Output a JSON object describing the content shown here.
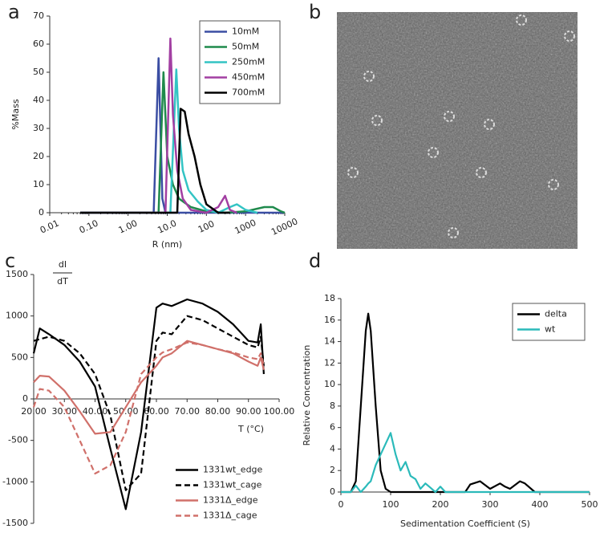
{
  "chart_data": [
    {
      "type": "line",
      "panel_label": "a",
      "xlabel": "R (nm)",
      "ylabel": "%Mass",
      "xlog": true,
      "legend": "upper right",
      "xlim": [
        0.01,
        10000
      ],
      "xticks": [
        0.01,
        {
          "value": 0.1,
          "label": "0.10"
        },
        {
          "value": 1,
          "label": "1.00"
        },
        {
          "value": 10,
          "label": "10.0"
        },
        100,
        1000,
        10000
      ],
      "ylim": [
        0,
        70
      ],
      "yticks": [
        0,
        10,
        20,
        30,
        40,
        50,
        60,
        70
      ],
      "series": [
        {
          "name": "10mM",
          "color": "#3b4ea3",
          "x": [
            0.06,
            4.5,
            6,
            7.5,
            9,
            10000
          ],
          "values": [
            0,
            0,
            55,
            5,
            0,
            0
          ]
        },
        {
          "name": "50mM",
          "color": "#1f8a4c",
          "x": [
            0.06,
            6,
            8,
            10,
            14,
            20,
            40,
            100,
            300,
            1000,
            3000,
            5000,
            8000,
            10000
          ],
          "values": [
            0,
            0,
            50,
            20,
            10,
            5,
            2,
            0.5,
            0,
            0.5,
            2,
            2,
            0.5,
            0
          ]
        },
        {
          "name": "250mM",
          "color": "#33c4c4",
          "x": [
            0.06,
            12,
            17,
            20,
            25,
            35,
            60,
            100,
            200,
            400,
            600,
            1000,
            2000
          ],
          "values": [
            0,
            0,
            51,
            30,
            15,
            8,
            4,
            1,
            0,
            2,
            3,
            1,
            0
          ]
        },
        {
          "name": "450mM",
          "color": "#a23fa2",
          "x": [
            0.06,
            9,
            12,
            14,
            18,
            25,
            40,
            100,
            200,
            300,
            400,
            600
          ],
          "values": [
            0,
            0,
            62,
            35,
            15,
            5,
            1,
            0,
            2,
            6,
            1,
            0
          ]
        },
        {
          "name": "700mM",
          "color": "#000000",
          "x": [
            0.06,
            18,
            22,
            28,
            35,
            50,
            70,
            100,
            200,
            400
          ],
          "values": [
            0,
            0,
            37,
            36,
            28,
            20,
            10,
            3,
            0,
            0
          ]
        }
      ]
    },
    {
      "type": "image",
      "panel_label": "b"
    },
    {
      "type": "line",
      "panel_label": "c",
      "xlabel": "T (°C)",
      "ylabel_top": "dI",
      "ylabel_bottom": "dT",
      "xaxis_position": "zero",
      "legend": "lower right",
      "xlim": [
        20,
        100
      ],
      "xticks": [
        {
          "value": 20,
          "label": "20.00"
        },
        {
          "value": 30,
          "label": "30.00"
        },
        {
          "value": 40,
          "label": "40.00"
        },
        {
          "value": 50,
          "label": "50.00"
        },
        {
          "value": 60,
          "label": "60.00"
        },
        {
          "value": 70,
          "label": "70.00"
        },
        {
          "value": 80,
          "label": "80.00"
        },
        {
          "value": 90,
          "label": "90.00"
        },
        {
          "value": 100,
          "label": "100.00"
        }
      ],
      "ylim": [
        -1500,
        1500
      ],
      "yticks": [
        -1500,
        -1000,
        -500,
        0,
        500,
        1000,
        1500
      ],
      "x": [
        20,
        22,
        25,
        30,
        35,
        40,
        45,
        50,
        55,
        60,
        62,
        65,
        70,
        75,
        80,
        85,
        90,
        93,
        94,
        95
      ],
      "series": [
        {
          "name": "1331wt_edge",
          "color": "#000000",
          "dash": false,
          "values": [
            550,
            850,
            780,
            650,
            450,
            150,
            -600,
            -1330,
            -400,
            1100,
            1150,
            1120,
            1200,
            1150,
            1050,
            900,
            700,
            680,
            900,
            300
          ]
        },
        {
          "name": "1331wt_cage",
          "color": "#000000",
          "dash": true,
          "values": [
            700,
            720,
            750,
            700,
            550,
            300,
            -200,
            -1100,
            -900,
            700,
            800,
            780,
            1000,
            950,
            850,
            750,
            650,
            620,
            750,
            400
          ]
        },
        {
          "name": "1331Δ_edge",
          "color": "#d0706a",
          "dash": false,
          "values": [
            200,
            280,
            270,
            100,
            -150,
            -420,
            -400,
            -100,
            200,
            400,
            500,
            550,
            700,
            650,
            600,
            550,
            450,
            400,
            500,
            350
          ]
        },
        {
          "name": "1331Δ_cage",
          "color": "#d0706a",
          "dash": true,
          "values": [
            -100,
            120,
            100,
            -100,
            -500,
            -900,
            -800,
            -400,
            300,
            500,
            560,
            600,
            680,
            650,
            600,
            560,
            500,
            480,
            550,
            400
          ]
        }
      ]
    },
    {
      "type": "line",
      "panel_label": "d",
      "xlabel": "Sedimentation Coefficient (S)",
      "ylabel": "Relative Concentration",
      "legend": "upper right",
      "xlim": [
        0,
        500
      ],
      "xticks": [
        0,
        100,
        200,
        300,
        400,
        500
      ],
      "ylim": [
        0,
        18
      ],
      "yticks": [
        0,
        2,
        4,
        6,
        8,
        10,
        12,
        14,
        16,
        18
      ],
      "x": [
        0,
        20,
        30,
        40,
        50,
        55,
        60,
        70,
        80,
        90,
        100,
        110,
        120,
        130,
        140,
        150,
        160,
        170,
        180,
        190,
        200,
        210,
        250,
        260,
        280,
        300,
        320,
        330,
        340,
        360,
        370,
        390,
        500
      ],
      "series": [
        {
          "name": "delta",
          "color": "#000000",
          "values": [
            0,
            0,
            1,
            8,
            15,
            16.6,
            15,
            8,
            2,
            0.3,
            0,
            0,
            0,
            0,
            0,
            0,
            0,
            0,
            0,
            0,
            0,
            0,
            0,
            0.7,
            1,
            0.3,
            0.8,
            0.5,
            0.3,
            1,
            0.8,
            0,
            0
          ]
        },
        {
          "name": "wt",
          "color": "#2bbaba",
          "values": [
            0,
            0,
            0.6,
            0,
            0.5,
            0.8,
            1,
            2.5,
            3.5,
            4.5,
            5.5,
            3.5,
            2,
            2.8,
            1.5,
            1.2,
            0.3,
            0.8,
            0.4,
            0,
            0.5,
            0,
            0,
            0,
            0,
            0,
            0,
            0,
            0,
            0,
            0,
            0,
            0
          ]
        }
      ]
    }
  ]
}
